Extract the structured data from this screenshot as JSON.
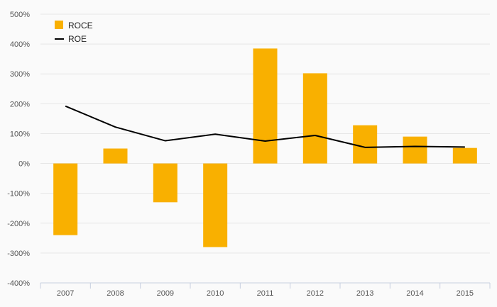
{
  "chart_data": {
    "type": "bar",
    "title": "",
    "xlabel": "",
    "ylabel": "",
    "categories": [
      "2007",
      "2008",
      "2009",
      "2010",
      "2011",
      "2012",
      "2013",
      "2014",
      "2015"
    ],
    "series": [
      {
        "name": "ROCE",
        "type": "bar",
        "color": "#f9b000",
        "values": [
          -240,
          50,
          -130,
          -280,
          385,
          302,
          128,
          90,
          52
        ]
      },
      {
        "name": "ROE",
        "type": "line",
        "color": "#000000",
        "values": [
          192,
          122,
          76,
          98,
          75,
          94,
          54,
          57,
          55
        ]
      }
    ],
    "ylim": [
      -400,
      500
    ],
    "yticks": [
      "500%",
      "400%",
      "300%",
      "200%",
      "100%",
      "0%",
      "-100%",
      "-200%",
      "-300%",
      "-400%"
    ],
    "ytick_values": [
      500,
      400,
      300,
      200,
      100,
      0,
      -100,
      -200,
      -300,
      -400
    ],
    "y_unit": "%",
    "grid": true,
    "legend_position": "top-left"
  }
}
